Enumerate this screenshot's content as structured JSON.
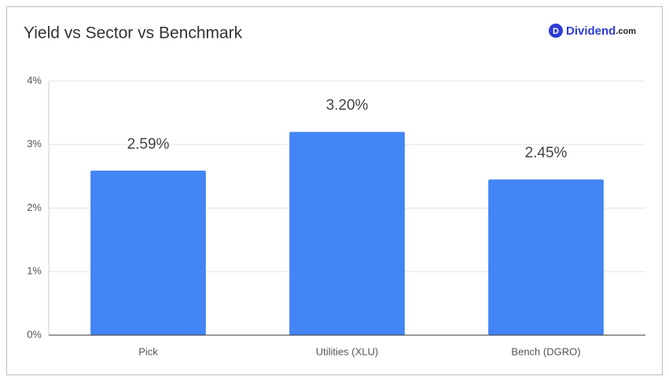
{
  "chart_data": {
    "type": "bar",
    "title": "Yield vs Sector vs Benchmark",
    "brand": {
      "icon": "D",
      "name": "Dividend",
      "suffix": ".com"
    },
    "categories": [
      "Pick",
      "Utilities (XLU)",
      "Bench (DGRO)"
    ],
    "values": [
      2.59,
      3.2,
      2.45
    ],
    "value_labels": [
      "2.59%",
      "3.20%",
      "2.45%"
    ],
    "color": "#4285f4",
    "ylim": [
      0,
      4
    ],
    "yticks": [
      {
        "value": 0,
        "label": "0%"
      },
      {
        "value": 1,
        "label": "1%"
      },
      {
        "value": 2,
        "label": "2%"
      },
      {
        "value": 3,
        "label": "3%"
      },
      {
        "value": 4,
        "label": "4%"
      }
    ],
    "grid": true
  }
}
